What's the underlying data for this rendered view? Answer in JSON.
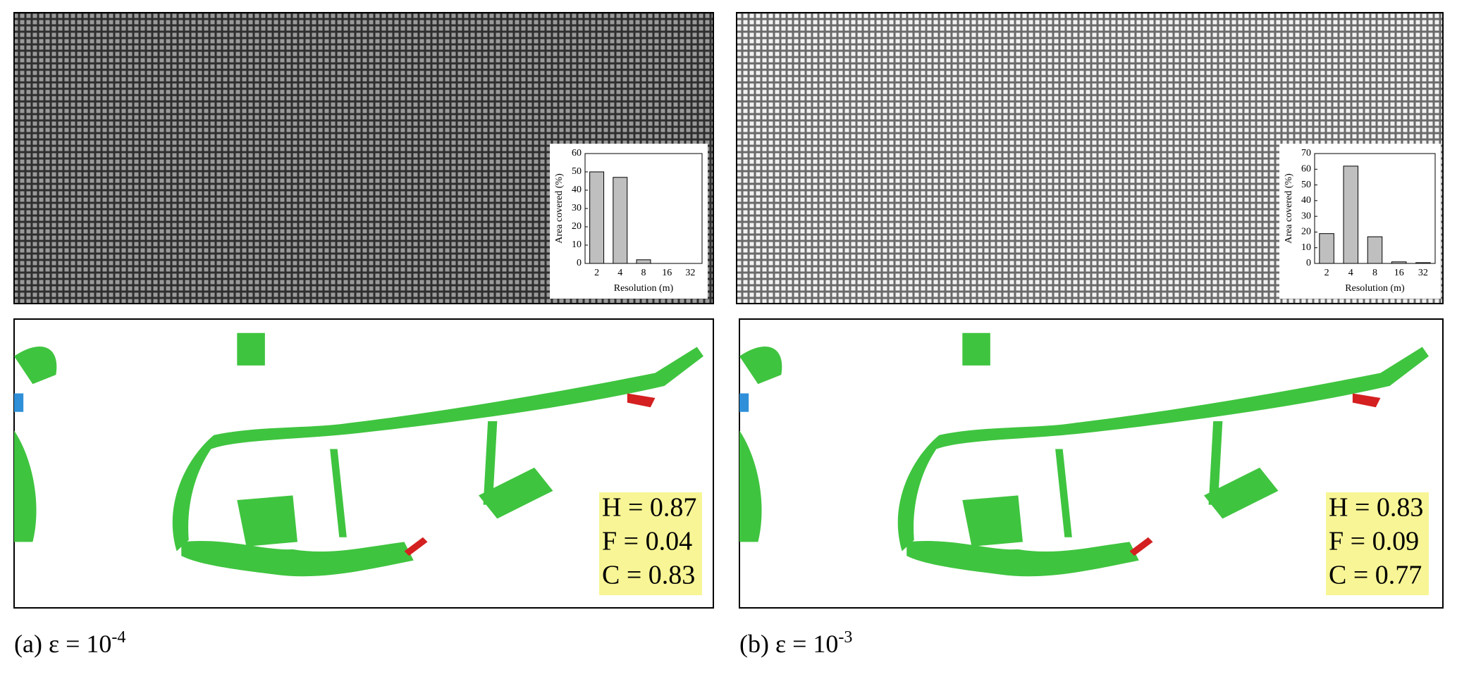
{
  "chart_data": [
    {
      "type": "bar",
      "categories": [
        "2",
        "4",
        "8",
        "16",
        "32"
      ],
      "values": [
        50,
        47,
        2,
        0,
        0
      ],
      "color": "#bfbfbf",
      "xlabel": "Resolution (m)",
      "ylabel": "Area covered (%)",
      "ylim": [
        0,
        60
      ],
      "yticks": [
        0,
        10,
        20,
        30,
        40,
        50,
        60
      ]
    },
    {
      "type": "bar",
      "categories": [
        "2",
        "4",
        "8",
        "16",
        "32"
      ],
      "values": [
        19,
        62,
        17,
        1,
        0.5
      ],
      "color": "#bfbfbf",
      "xlabel": "Resolution (m)",
      "ylabel": "Area covered (%)",
      "ylim": [
        0,
        70
      ],
      "yticks": [
        0,
        10,
        20,
        30,
        40,
        50,
        60,
        70
      ]
    }
  ],
  "panels": [
    {
      "caption": "(a) ε = 10",
      "exponent": "-4",
      "stats": [
        "H = 0.87",
        "F = 0.04",
        "C = 0.83"
      ]
    },
    {
      "caption": "(b) ε = 10",
      "exponent": "-3",
      "stats": [
        "H = 0.83",
        "F = 0.09",
        "C = 0.77"
      ]
    }
  ]
}
